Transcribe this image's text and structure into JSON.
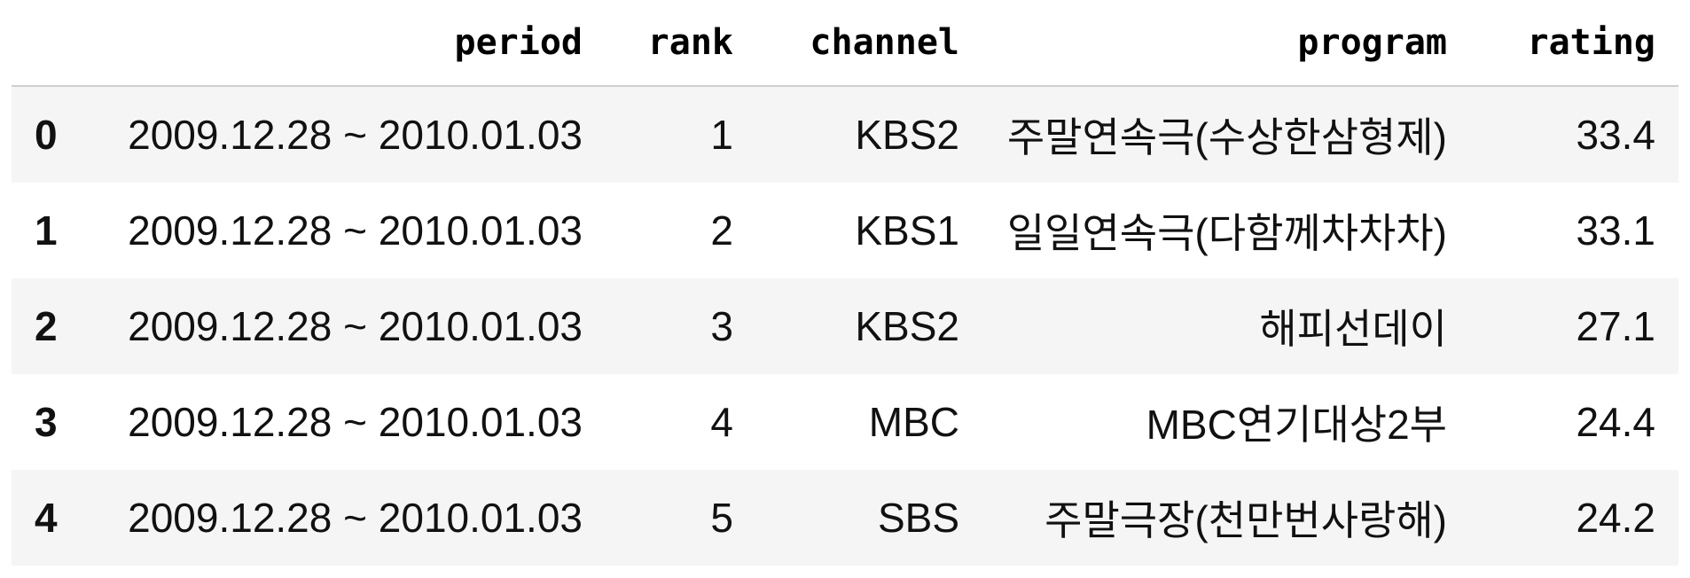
{
  "table": {
    "headers": [
      "",
      "period",
      "rank",
      "channel",
      "program",
      "rating"
    ],
    "rows": [
      {
        "index": "0",
        "period": "2009.12.28 ~ 2010.01.03",
        "rank": "1",
        "channel": "KBS2",
        "program": "주말연속극(수상한삼형제)",
        "rating": "33.4"
      },
      {
        "index": "1",
        "period": "2009.12.28 ~ 2010.01.03",
        "rank": "2",
        "channel": "KBS1",
        "program": "일일연속극(다함께차차차)",
        "rating": "33.1"
      },
      {
        "index": "2",
        "period": "2009.12.28 ~ 2010.01.03",
        "rank": "3",
        "channel": "KBS2",
        "program": "해피선데이",
        "rating": "27.1"
      },
      {
        "index": "3",
        "period": "2009.12.28 ~ 2010.01.03",
        "rank": "4",
        "channel": "MBC",
        "program": "MBC연기대상2부",
        "rating": "24.4"
      },
      {
        "index": "4",
        "period": "2009.12.28 ~ 2010.01.03",
        "rank": "5",
        "channel": "SBS",
        "program": "주말극장(천만번사랑해)",
        "rating": "24.2"
      }
    ]
  }
}
